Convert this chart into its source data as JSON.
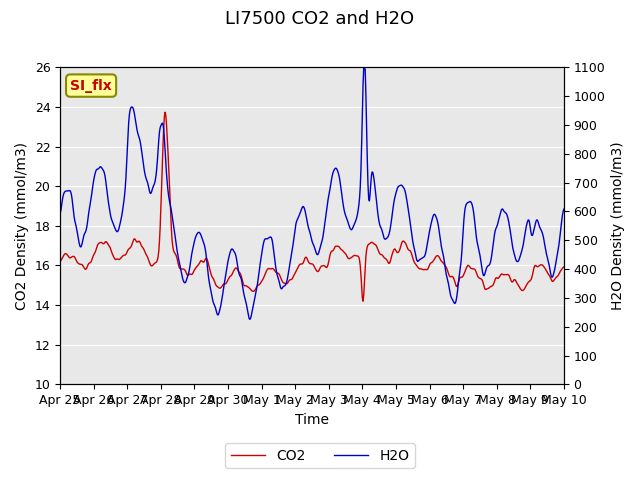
{
  "title": "LI7500 CO2 and H2O",
  "xlabel": "Time",
  "ylabel_left": "CO2 Density (mmol/m3)",
  "ylabel_right": "H2O Density (mmol/m3)",
  "ylim_left": [
    10,
    26
  ],
  "ylim_right": [
    0,
    1100
  ],
  "yticks_left": [
    10,
    12,
    14,
    16,
    18,
    20,
    22,
    24,
    26
  ],
  "yticks_right": [
    0,
    100,
    200,
    300,
    400,
    500,
    600,
    700,
    800,
    900,
    1000,
    1100
  ],
  "co2_color": "#cc0000",
  "h2o_color": "#0000cc",
  "bg_color": "#e8e8e8",
  "annotation_text": "SI_flx",
  "annotation_bg": "#ffff99",
  "annotation_border": "#888800",
  "legend_co2": "CO2",
  "legend_h2o": "H2O",
  "title_fontsize": 13,
  "label_fontsize": 10,
  "tick_fontsize": 9
}
